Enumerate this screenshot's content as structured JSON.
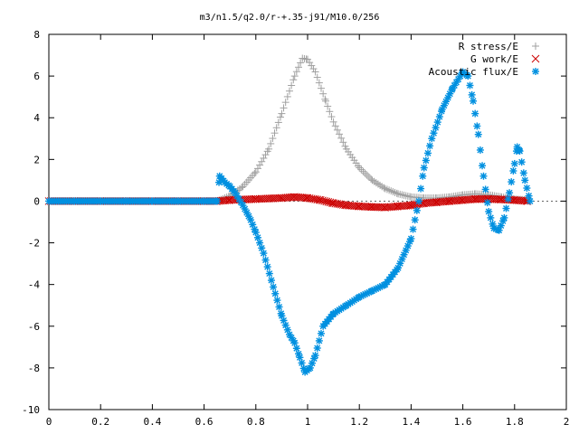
{
  "chart_data": {
    "type": "scatter",
    "title": "m3/n1.5/q2.0/r-+.35-j91/M10.0/256",
    "xlabel": "",
    "ylabel": "",
    "xlim": [
      0,
      2
    ],
    "ylim": [
      -10,
      8
    ],
    "xticks": [
      0,
      0.2,
      0.4,
      0.6,
      0.8,
      1,
      1.2,
      1.4,
      1.6,
      1.8,
      2
    ],
    "xtick_labels": [
      "0",
      "0.2",
      "0.4",
      "0.6",
      "0.8",
      "1",
      "1.2",
      "1.4",
      "1.6",
      "1.8",
      "2"
    ],
    "yticks": [
      -10,
      -8,
      -6,
      -4,
      -2,
      0,
      2,
      4,
      6,
      8
    ],
    "ytick_labels": [
      "-10",
      "-8",
      "-6",
      "-4",
      "-2",
      "0",
      "2",
      "4",
      "6",
      "8"
    ],
    "grid": false,
    "legend_position": "top-right",
    "series": [
      {
        "name": "R stress/E",
        "marker": "plus",
        "color": "#a0a0a0",
        "points": [
          [
            0.0,
            0
          ],
          [
            0.1,
            0
          ],
          [
            0.2,
            0
          ],
          [
            0.3,
            0
          ],
          [
            0.4,
            0
          ],
          [
            0.5,
            0
          ],
          [
            0.6,
            0
          ],
          [
            0.65,
            0
          ],
          [
            0.7,
            0.25
          ],
          [
            0.75,
            0.7
          ],
          [
            0.8,
            1.4
          ],
          [
            0.85,
            2.5
          ],
          [
            0.9,
            4.2
          ],
          [
            0.95,
            6.0
          ],
          [
            0.98,
            6.85
          ],
          [
            1.0,
            6.8
          ],
          [
            1.03,
            6.2
          ],
          [
            1.07,
            4.8
          ],
          [
            1.1,
            3.8
          ],
          [
            1.15,
            2.5
          ],
          [
            1.2,
            1.6
          ],
          [
            1.25,
            1.0
          ],
          [
            1.3,
            0.6
          ],
          [
            1.35,
            0.35
          ],
          [
            1.4,
            0.2
          ],
          [
            1.45,
            0.15
          ],
          [
            1.5,
            0.15
          ],
          [
            1.55,
            0.2
          ],
          [
            1.6,
            0.3
          ],
          [
            1.65,
            0.35
          ],
          [
            1.7,
            0.3
          ],
          [
            1.75,
            0.2
          ],
          [
            1.8,
            0.1
          ],
          [
            1.85,
            0.05
          ]
        ]
      },
      {
        "name": "G work/E",
        "marker": "cross",
        "color": "#cc0000",
        "points": [
          [
            0.0,
            0
          ],
          [
            0.1,
            0
          ],
          [
            0.2,
            0
          ],
          [
            0.3,
            0
          ],
          [
            0.4,
            0
          ],
          [
            0.5,
            0
          ],
          [
            0.6,
            0
          ],
          [
            0.65,
            0
          ],
          [
            0.7,
            0.05
          ],
          [
            0.8,
            0.1
          ],
          [
            0.9,
            0.15
          ],
          [
            0.95,
            0.2
          ],
          [
            1.0,
            0.15
          ],
          [
            1.05,
            0.05
          ],
          [
            1.1,
            -0.1
          ],
          [
            1.15,
            -0.2
          ],
          [
            1.2,
            -0.25
          ],
          [
            1.25,
            -0.28
          ],
          [
            1.3,
            -0.3
          ],
          [
            1.35,
            -0.25
          ],
          [
            1.4,
            -0.2
          ],
          [
            1.45,
            -0.1
          ],
          [
            1.5,
            -0.05
          ],
          [
            1.55,
            0.0
          ],
          [
            1.6,
            0.05
          ],
          [
            1.65,
            0.1
          ],
          [
            1.7,
            0.1
          ],
          [
            1.75,
            0.08
          ],
          [
            1.8,
            0.05
          ],
          [
            1.85,
            0.0
          ]
        ]
      },
      {
        "name": "Acoustic flux/E",
        "marker": "star",
        "color": "#0090e0",
        "points": [
          [
            0.0,
            0
          ],
          [
            0.1,
            0
          ],
          [
            0.2,
            0
          ],
          [
            0.3,
            0
          ],
          [
            0.4,
            0
          ],
          [
            0.5,
            0
          ],
          [
            0.6,
            0
          ],
          [
            0.65,
            0
          ],
          [
            0.66,
            1.2
          ],
          [
            0.68,
            0.9
          ],
          [
            0.7,
            0.7
          ],
          [
            0.72,
            0.4
          ],
          [
            0.75,
            -0.2
          ],
          [
            0.78,
            -0.9
          ],
          [
            0.8,
            -1.5
          ],
          [
            0.83,
            -2.5
          ],
          [
            0.86,
            -3.8
          ],
          [
            0.9,
            -5.5
          ],
          [
            0.93,
            -6.4
          ],
          [
            0.95,
            -6.8
          ],
          [
            0.97,
            -7.5
          ],
          [
            0.99,
            -8.2
          ],
          [
            1.01,
            -8.0
          ],
          [
            1.03,
            -7.4
          ],
          [
            1.06,
            -6.0
          ],
          [
            1.1,
            -5.4
          ],
          [
            1.15,
            -5.0
          ],
          [
            1.2,
            -4.6
          ],
          [
            1.25,
            -4.3
          ],
          [
            1.3,
            -4.0
          ],
          [
            1.35,
            -3.2
          ],
          [
            1.4,
            -1.8
          ],
          [
            1.43,
            0.0
          ],
          [
            1.45,
            1.6
          ],
          [
            1.48,
            3.0
          ],
          [
            1.52,
            4.4
          ],
          [
            1.56,
            5.4
          ],
          [
            1.6,
            6.2
          ],
          [
            1.62,
            6.0
          ],
          [
            1.64,
            4.8
          ],
          [
            1.66,
            3.2
          ],
          [
            1.68,
            1.2
          ],
          [
            1.7,
            -0.5
          ],
          [
            1.72,
            -1.3
          ],
          [
            1.74,
            -1.4
          ],
          [
            1.76,
            -0.8
          ],
          [
            1.78,
            0.4
          ],
          [
            1.8,
            1.8
          ],
          [
            1.81,
            2.6
          ],
          [
            1.82,
            2.4
          ],
          [
            1.84,
            1.0
          ],
          [
            1.86,
            0.0
          ]
        ]
      }
    ]
  }
}
